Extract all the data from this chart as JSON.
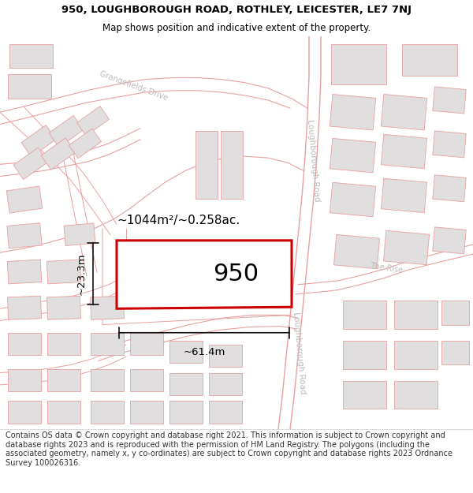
{
  "title_line1": "950, LOUGHBOROUGH ROAD, ROTHLEY, LEICESTER, LE7 7NJ",
  "title_line2": "Map shows position and indicative extent of the property.",
  "footer_text": "Contains OS data © Crown copyright and database right 2021. This information is subject to Crown copyright and database rights 2023 and is reproduced with the permission of HM Land Registry. The polygons (including the associated geometry, namely x, y co-ordinates) are subject to Crown copyright and database rights 2023 Ordnance Survey 100026316.",
  "property_label": "950",
  "area_label": "~1044m²/~0.258ac.",
  "width_label": "~61.4m",
  "height_label": "~23.3m",
  "map_bg": "#f7f6f5",
  "road_line_color": "#e8a0a0",
  "building_fill": "#e0dede",
  "building_edge": "#e8a0a0",
  "property_fill": "#ffffff",
  "property_edge": "#cc0000",
  "dim_color": "#111111",
  "label_color": "#c8a0a0",
  "title_fontsize": 9.5,
  "subtitle_fontsize": 8.5,
  "footer_fontsize": 7.0
}
